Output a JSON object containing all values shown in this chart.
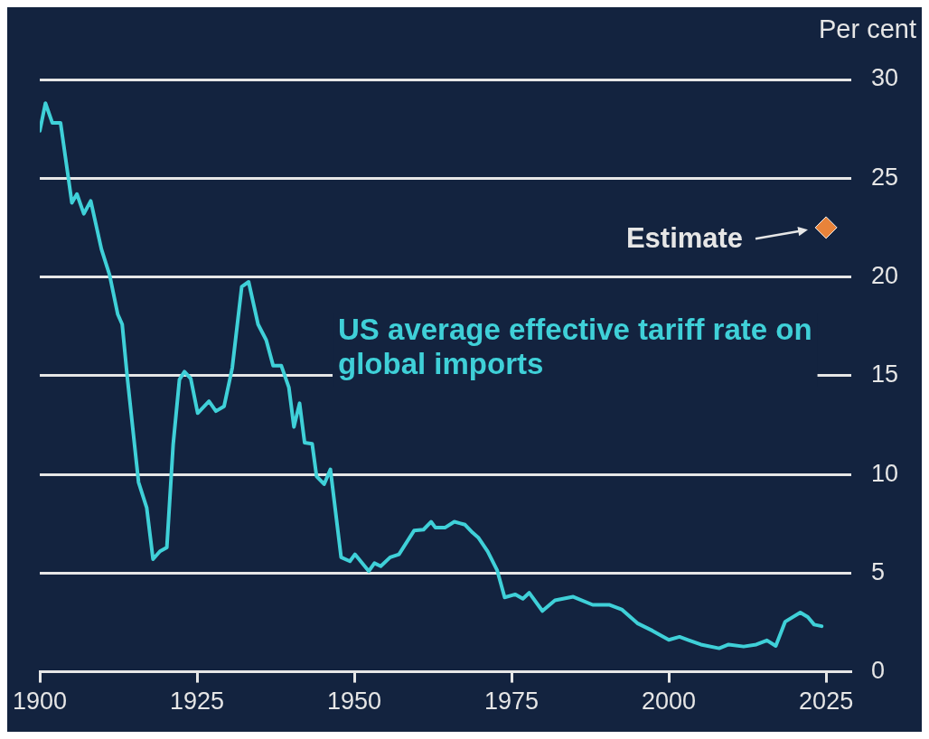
{
  "chart_data": {
    "type": "line",
    "ylabel": "Per cent",
    "xlim": [
      1900,
      2029
    ],
    "xticks": [
      1900,
      1925,
      1950,
      1975,
      2000,
      2025
    ],
    "ylim": [
      0,
      30
    ],
    "yticks": [
      0,
      5,
      10,
      15,
      20,
      25,
      30
    ],
    "grid": "y",
    "legend": false,
    "series": [
      {
        "name": "US average effective tariff rate on global imports",
        "color": "#3fd0d8",
        "marker": "none",
        "x": [
          1900,
          1900.9,
          1902,
          1903.3,
          1905.1,
          1905.9,
          1907,
          1908.1,
          1909.8,
          1911.1,
          1912.4,
          1913.1,
          1913.9,
          1915.7,
          1917,
          1918,
          1919.1,
          1920.2,
          1921.2,
          1922.2,
          1923,
          1924,
          1925.1,
          1926.9,
          1928,
          1929.3,
          1930.6,
          1932.1,
          1933.2,
          1934.7,
          1936,
          1937.1,
          1938.4,
          1939.6,
          1940.4,
          1941.3,
          1942.1,
          1943.3,
          1944,
          1945.2,
          1946.2,
          1947.9,
          1949.3,
          1950.1,
          1952.3,
          1953.2,
          1954.2,
          1955.7,
          1957.1,
          1959.5,
          1961,
          1962.2,
          1962.9,
          1964.4,
          1965.9,
          1967.6,
          1968.8,
          1969.7,
          1971.2,
          1972.7,
          1973.9,
          1975.6,
          1976.8,
          1977.8,
          1979.9,
          1981.9,
          1984.8,
          1987.9,
          1990.6,
          1992.5,
          1995,
          1997.4,
          2000,
          2001.7,
          2005.1,
          2008,
          2009.5,
          2011.9,
          2013.9,
          2015.6,
          2017,
          2018.5,
          2020.9,
          2022.1,
          2023.1,
          2024.3
        ],
        "values": [
          27.4,
          28.8,
          27.8,
          27.8,
          23.75,
          24.2,
          23.2,
          23.85,
          21.4,
          20.1,
          18.1,
          17.6,
          14.95,
          9.6,
          8.3,
          5.7,
          6.1,
          6.3,
          11.5,
          14.8,
          15.2,
          14.85,
          13.1,
          13.7,
          13.2,
          13.45,
          15.4,
          19.5,
          19.75,
          17.6,
          16.8,
          15.5,
          15.5,
          14.4,
          12.4,
          13.6,
          11.6,
          11.55,
          9.9,
          9.5,
          10.25,
          5.8,
          5.6,
          5.95,
          5.1,
          5.5,
          5.35,
          5.8,
          5.95,
          7.15,
          7.2,
          7.6,
          7.3,
          7.3,
          7.6,
          7.45,
          7.05,
          6.8,
          6.1,
          5.15,
          3.77,
          3.92,
          3.7,
          4.0,
          3.08,
          3.62,
          3.8,
          3.39,
          3.39,
          3.16,
          2.46,
          2.08,
          1.62,
          1.77,
          1.38,
          1.19,
          1.38,
          1.28,
          1.38,
          1.59,
          1.31,
          2.54,
          3.0,
          2.77,
          2.39,
          2.31
        ]
      },
      {
        "type": "scatter",
        "color": "#e8833a",
        "marker": "diamond",
        "x": [
          2025
        ],
        "values": [
          22.5
        ]
      }
    ],
    "annotations": [
      {
        "text": "Estimate",
        "x": 2025,
        "y": 22.5
      }
    ]
  }
}
